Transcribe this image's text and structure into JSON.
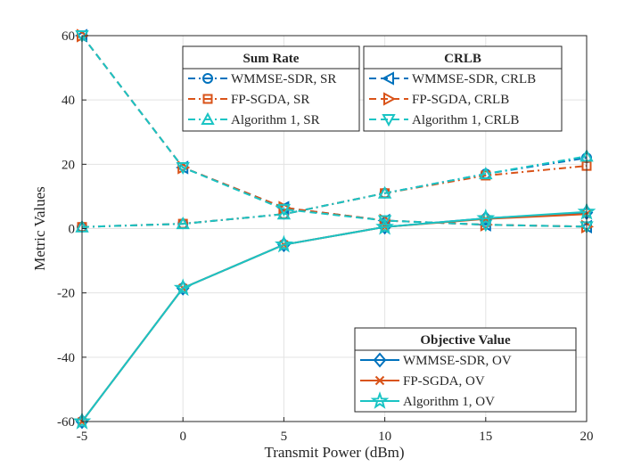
{
  "chart_data": {
    "type": "line",
    "xlabel": "Transmit Power (dBm)",
    "ylabel": "Metric Values",
    "xlim": [
      -5,
      20
    ],
    "ylim": [
      -60,
      60
    ],
    "grid": true,
    "x": [
      -5,
      0,
      5,
      10,
      15,
      20
    ],
    "x_ticks": [
      "-5",
      "0",
      "5",
      "10",
      "15",
      "20"
    ],
    "y_ticks": [
      "-60",
      "-40",
      "-20",
      "0",
      "20",
      "40",
      "60"
    ],
    "series": [
      {
        "name": "WMMSE-SDR, SR",
        "group": "sr",
        "color": "#0072BD",
        "dash": "dashdot",
        "marker": "circle",
        "values": [
          0.5,
          1.5,
          4.5,
          11,
          17,
          22
        ]
      },
      {
        "name": "FP-SGDA, SR",
        "group": "sr",
        "color": "#D95319",
        "dash": "dashdot",
        "marker": "square",
        "values": [
          0.5,
          1.5,
          4.5,
          11,
          16.5,
          19.5
        ]
      },
      {
        "name": "Algorithm 1, SR",
        "group": "sr",
        "color": "#1AC4C4",
        "dash": "dashdot",
        "marker": "triangle-up",
        "values": [
          0.5,
          1.5,
          4.5,
          11,
          17,
          22.5
        ]
      },
      {
        "name": "WMMSE-SDR, CRLB",
        "group": "crlb",
        "color": "#0072BD",
        "dash": "dashed",
        "marker": "triangle-left",
        "values": [
          60,
          19,
          6.5,
          2.5,
          1.2,
          0.6
        ]
      },
      {
        "name": "FP-SGDA, CRLB",
        "group": "crlb",
        "color": "#D95319",
        "dash": "dashed",
        "marker": "triangle-right",
        "values": [
          60,
          19,
          6.5,
          2.5,
          1.2,
          0.6
        ]
      },
      {
        "name": "Algorithm 1, CRLB",
        "group": "crlb",
        "color": "#1AC4C4",
        "dash": "dashed",
        "marker": "triangle-down",
        "values": [
          60,
          19,
          6,
          2.5,
          1.2,
          0.6
        ]
      },
      {
        "name": "WMMSE-SDR, OV",
        "group": "ov",
        "color": "#0072BD",
        "dash": "solid",
        "marker": "diamond",
        "values": [
          -60,
          -18.5,
          -5,
          0.5,
          3.2,
          5
        ]
      },
      {
        "name": "FP-SGDA, OV",
        "group": "ov",
        "color": "#D95319",
        "dash": "solid",
        "marker": "x",
        "values": [
          -60,
          -18.5,
          -5,
          0.5,
          3,
          4.5
        ]
      },
      {
        "name": "Algorithm 1, OV",
        "group": "ov",
        "color": "#1AC4C4",
        "dash": "solid",
        "marker": "star",
        "values": [
          -60,
          -18.5,
          -5,
          0.5,
          3.2,
          5.2
        ]
      }
    ],
    "legends": [
      {
        "group": "sr",
        "title": "Sum Rate",
        "placement": "top-center"
      },
      {
        "group": "crlb",
        "title": "CRLB",
        "placement": "top-right"
      },
      {
        "group": "ov",
        "title": "Objective Value",
        "placement": "bottom-right"
      }
    ]
  }
}
